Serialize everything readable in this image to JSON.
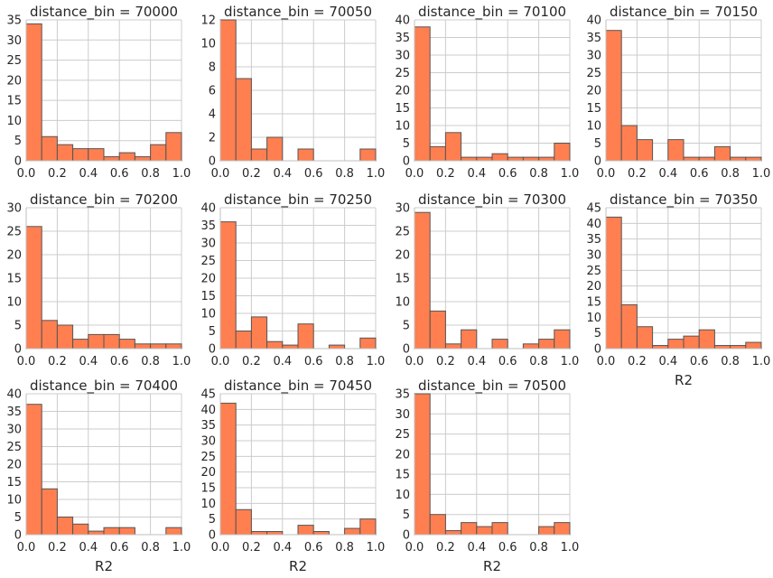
{
  "chart_data": [
    {
      "type": "bar",
      "title": "distance_bin = 70000",
      "bin_edges": [
        0,
        0.1,
        0.2,
        0.3,
        0.4,
        0.5,
        0.6,
        0.7,
        0.8,
        0.9,
        1.0
      ],
      "values": [
        34,
        6,
        4,
        3,
        3,
        1,
        2,
        1,
        4,
        7
      ],
      "ylim": [
        0,
        35
      ],
      "yticks": [
        "0",
        "5",
        "10",
        "15",
        "20",
        "25",
        "30",
        "35"
      ],
      "xticks": [
        "0.0",
        "0.2",
        "0.4",
        "0.6",
        "0.8",
        "1.0"
      ],
      "xlabel": ""
    },
    {
      "type": "bar",
      "title": "distance_bin = 70050",
      "bin_edges": [
        0,
        0.1,
        0.2,
        0.3,
        0.4,
        0.5,
        0.6,
        0.7,
        0.8,
        0.9,
        1.0
      ],
      "values": [
        12,
        7,
        1,
        2,
        0,
        1,
        0,
        0,
        0,
        1
      ],
      "ylim": [
        0,
        12
      ],
      "yticks": [
        "0",
        "2",
        "4",
        "6",
        "8",
        "10",
        "12"
      ],
      "xticks": [
        "0.0",
        "0.2",
        "0.4",
        "0.6",
        "0.8",
        "1.0"
      ],
      "xlabel": ""
    },
    {
      "type": "bar",
      "title": "distance_bin = 70100",
      "bin_edges": [
        0,
        0.1,
        0.2,
        0.3,
        0.4,
        0.5,
        0.6,
        0.7,
        0.8,
        0.9,
        1.0
      ],
      "values": [
        38,
        4,
        8,
        1,
        1,
        2,
        1,
        1,
        1,
        5
      ],
      "ylim": [
        0,
        40
      ],
      "yticks": [
        "0",
        "5",
        "10",
        "15",
        "20",
        "25",
        "30",
        "35",
        "40"
      ],
      "xticks": [
        "0.0",
        "0.2",
        "0.4",
        "0.6",
        "0.8",
        "1.0"
      ],
      "xlabel": ""
    },
    {
      "type": "bar",
      "title": "distance_bin = 70150",
      "bin_edges": [
        0,
        0.1,
        0.2,
        0.3,
        0.4,
        0.5,
        0.6,
        0.7,
        0.8,
        0.9,
        1.0
      ],
      "values": [
        37,
        10,
        6,
        0,
        6,
        1,
        1,
        4,
        1,
        1
      ],
      "ylim": [
        0,
        40
      ],
      "yticks": [
        "0",
        "5",
        "10",
        "15",
        "20",
        "25",
        "30",
        "35",
        "40"
      ],
      "xticks": [
        "0.0",
        "0.2",
        "0.4",
        "0.6",
        "0.8",
        "1.0"
      ],
      "xlabel": ""
    },
    {
      "type": "bar",
      "title": "distance_bin = 70200",
      "bin_edges": [
        0,
        0.1,
        0.2,
        0.3,
        0.4,
        0.5,
        0.6,
        0.7,
        0.8,
        0.9,
        1.0
      ],
      "values": [
        26,
        6,
        5,
        2,
        3,
        3,
        2,
        1,
        1,
        1
      ],
      "ylim": [
        0,
        30
      ],
      "yticks": [
        "0",
        "5",
        "10",
        "15",
        "20",
        "25",
        "30"
      ],
      "xticks": [
        "0.0",
        "0.2",
        "0.4",
        "0.6",
        "0.8",
        "1.0"
      ],
      "xlabel": ""
    },
    {
      "type": "bar",
      "title": "distance_bin = 70250",
      "bin_edges": [
        0,
        0.1,
        0.2,
        0.3,
        0.4,
        0.5,
        0.6,
        0.7,
        0.8,
        0.9,
        1.0
      ],
      "values": [
        36,
        5,
        9,
        2,
        1,
        7,
        0,
        1,
        0,
        3
      ],
      "ylim": [
        0,
        40
      ],
      "yticks": [
        "0",
        "5",
        "10",
        "15",
        "20",
        "25",
        "30",
        "35",
        "40"
      ],
      "xticks": [
        "0.0",
        "0.2",
        "0.4",
        "0.6",
        "0.8",
        "1.0"
      ],
      "xlabel": ""
    },
    {
      "type": "bar",
      "title": "distance_bin = 70300",
      "bin_edges": [
        0,
        0.1,
        0.2,
        0.3,
        0.4,
        0.5,
        0.6,
        0.7,
        0.8,
        0.9,
        1.0
      ],
      "values": [
        29,
        8,
        1,
        4,
        0,
        2,
        0,
        1,
        2,
        4
      ],
      "ylim": [
        0,
        30
      ],
      "yticks": [
        "0",
        "5",
        "10",
        "15",
        "20",
        "25",
        "30"
      ],
      "xticks": [
        "0.0",
        "0.2",
        "0.4",
        "0.6",
        "0.8",
        "1.0"
      ],
      "xlabel": ""
    },
    {
      "type": "bar",
      "title": "distance_bin = 70350",
      "bin_edges": [
        0,
        0.1,
        0.2,
        0.3,
        0.4,
        0.5,
        0.6,
        0.7,
        0.8,
        0.9,
        1.0
      ],
      "values": [
        42,
        14,
        7,
        1,
        3,
        4,
        6,
        1,
        1,
        2
      ],
      "ylim": [
        0,
        45
      ],
      "yticks": [
        "0",
        "5",
        "10",
        "15",
        "20",
        "25",
        "30",
        "35",
        "40",
        "45"
      ],
      "xticks": [
        "0.0",
        "0.2",
        "0.4",
        "0.6",
        "0.8",
        "1.0"
      ],
      "xlabel": "R2"
    },
    {
      "type": "bar",
      "title": "distance_bin = 70400",
      "bin_edges": [
        0,
        0.1,
        0.2,
        0.3,
        0.4,
        0.5,
        0.6,
        0.7,
        0.8,
        0.9,
        1.0
      ],
      "values": [
        37,
        13,
        5,
        3,
        1,
        2,
        2,
        0,
        0,
        2
      ],
      "ylim": [
        0,
        40
      ],
      "yticks": [
        "0",
        "5",
        "10",
        "15",
        "20",
        "25",
        "30",
        "35",
        "40"
      ],
      "xticks": [
        "0.0",
        "0.2",
        "0.4",
        "0.6",
        "0.8",
        "1.0"
      ],
      "xlabel": "R2"
    },
    {
      "type": "bar",
      "title": "distance_bin = 70450",
      "bin_edges": [
        0,
        0.1,
        0.2,
        0.3,
        0.4,
        0.5,
        0.6,
        0.7,
        0.8,
        0.9,
        1.0
      ],
      "values": [
        42,
        8,
        1,
        1,
        0,
        3,
        1,
        0,
        2,
        5
      ],
      "ylim": [
        0,
        45
      ],
      "yticks": [
        "0",
        "5",
        "10",
        "15",
        "20",
        "25",
        "30",
        "35",
        "40",
        "45"
      ],
      "xticks": [
        "0.0",
        "0.2",
        "0.4",
        "0.6",
        "0.8",
        "1.0"
      ],
      "xlabel": "R2"
    },
    {
      "type": "bar",
      "title": "distance_bin = 70500",
      "bin_edges": [
        0,
        0.1,
        0.2,
        0.3,
        0.4,
        0.5,
        0.6,
        0.7,
        0.8,
        0.9,
        1.0
      ],
      "values": [
        35,
        5,
        1,
        3,
        2,
        3,
        0,
        0,
        2,
        3
      ],
      "ylim": [
        0,
        35
      ],
      "yticks": [
        "0",
        "5",
        "10",
        "15",
        "20",
        "25",
        "30",
        "35"
      ],
      "xticks": [
        "0.0",
        "0.2",
        "0.4",
        "0.6",
        "0.8",
        "1.0"
      ],
      "xlabel": "R2"
    }
  ],
  "colors": {
    "bar_fill": "#ff7f50",
    "bar_edge": "#555555",
    "grid": "#cccccc",
    "text": "#262626"
  },
  "grid": true
}
